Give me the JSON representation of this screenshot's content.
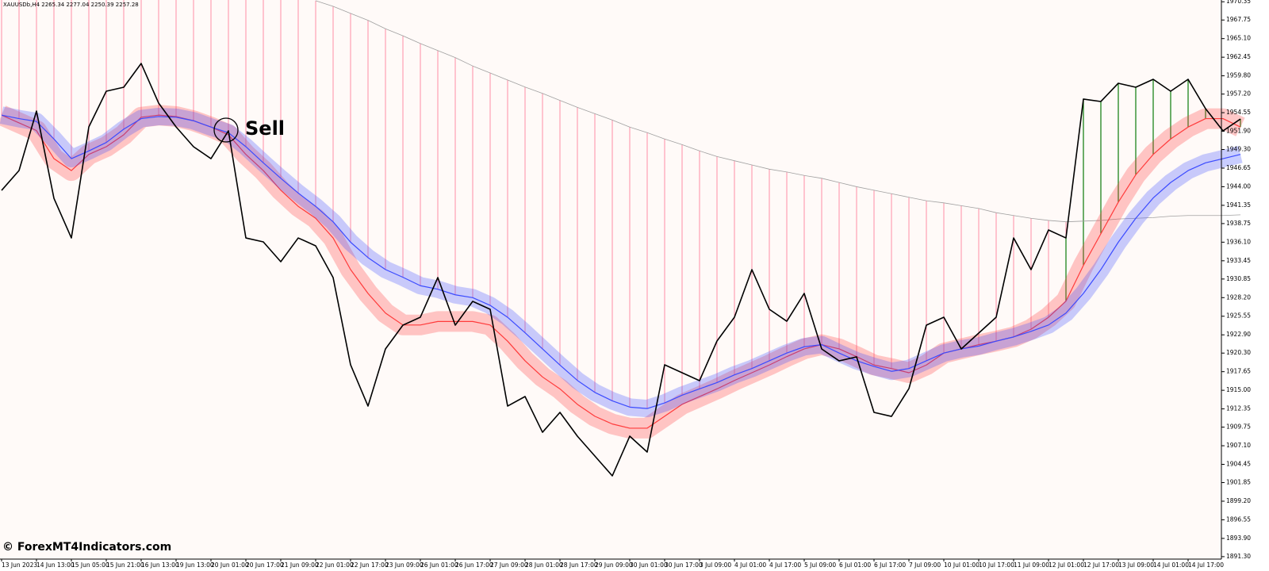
{
  "chart_data": {
    "type": "line",
    "symbol_info": "XAUUSDb,H4  2265.34 2277.04 2250.39 2257.28",
    "annotation": "Sell",
    "watermark": "© ForexMT4Indicators.com",
    "categories": [
      "13 Jun 2023",
      null,
      "14 Jun 13:00",
      null,
      "15 Jun 05:00",
      null,
      "15 Jun 21:00",
      null,
      "16 Jun 13:00",
      null,
      "19 Jun 13:00",
      null,
      "20 Jun 01:00",
      null,
      "20 Jun 17:00",
      null,
      "21 Jun 09:00",
      null,
      "22 Jun 01:00",
      null,
      "22 Jun 17:00",
      null,
      "23 Jun 09:00",
      null,
      "26 Jun 01:00",
      null,
      "26 Jun 17:00",
      null,
      "27 Jun 09:00",
      null,
      "28 Jun 01:00",
      null,
      "28 Jun 17:00",
      null,
      "29 Jun 09:00",
      null,
      "30 Jun 01:00",
      null,
      "30 Jun 17:00",
      null,
      "3 Jul 09:00",
      null,
      "4 Jul 01:00",
      null,
      "4 Jul 17:00",
      null,
      "5 Jul 09:00",
      null,
      "6 Jul 01:00",
      null,
      "6 Jul 17:00",
      null,
      "7 Jul 09:00",
      null,
      "10 Jul 01:00",
      null,
      "10 Jul 17:00",
      null,
      "11 Jul 09:00",
      null,
      "12 Jul 01:00",
      null,
      "12 Jul 17:00",
      null,
      "13 Jul 09:00",
      null,
      "14 Jul 01:00",
      null,
      "14 Jul 17:00",
      null,
      null,
      null
    ],
    "series": [
      {
        "color": "#000000",
        "values": [
          1943.48,
          1946.31,
          1954.78,
          1942.35,
          1936.7,
          1952.52,
          1957.61,
          1958.17,
          1961.56,
          1955.91,
          1952.52,
          1949.7,
          1948.0,
          1951.96,
          1936.7,
          1936.14,
          1933.32,
          1936.7,
          1935.58,
          1931.06,
          1918.63,
          1912.75,
          1920.89,
          1924.28,
          1925.41,
          1931.06,
          1924.28,
          1927.67,
          1926.54,
          1912.75,
          1914.11,
          1909.02,
          1911.85,
          1908.46,
          1905.64,
          1902.81,
          1908.46,
          1906.2,
          1918.63,
          1917.5,
          1916.37,
          1922.02,
          1925.41,
          1932.19,
          1926.54,
          1924.84,
          1928.8,
          1920.89,
          1919.19,
          1919.76,
          1911.85,
          1911.28,
          1915.24,
          1924.28,
          1925.41,
          1920.89,
          1923.15,
          1925.41,
          1936.7,
          1932.19,
          1937.84,
          1936.7,
          1956.48,
          1956.14,
          1958.74,
          1958.17,
          1959.3,
          1957.61,
          1959.3,
          1955.12,
          1951.96,
          1953.65
        ]
      },
      {
        "color": "#ff3b3b",
        "values": [
          1954.2,
          1953.1,
          1952.0,
          1948.0,
          1946.3,
          1948.6,
          1949.7,
          1951.4,
          1953.9,
          1954.2,
          1954.0,
          1953.4,
          1952.5,
          1951.4,
          1948.6,
          1946.3,
          1943.5,
          1941.2,
          1939.5,
          1936.7,
          1932.2,
          1928.8,
          1926.0,
          1924.3,
          1924.3,
          1924.8,
          1924.8,
          1924.8,
          1924.3,
          1922.0,
          1919.2,
          1916.9,
          1915.2,
          1913.0,
          1911.3,
          1910.2,
          1909.6,
          1909.6,
          1911.3,
          1913.0,
          1914.1,
          1915.2,
          1916.4,
          1917.5,
          1918.6,
          1919.8,
          1920.9,
          1921.5,
          1920.9,
          1919.8,
          1918.6,
          1918.1,
          1917.5,
          1918.6,
          1920.3,
          1920.9,
          1921.5,
          1922.0,
          1922.6,
          1923.7,
          1925.4,
          1927.7,
          1932.8,
          1937.3,
          1941.8,
          1945.7,
          1948.6,
          1950.8,
          1952.5,
          1953.7,
          1953.7,
          1952.5
        ]
      },
      {
        "color": "#3b4bff",
        "values": [
          1954.2,
          1953.7,
          1953.3,
          1950.8,
          1948.0,
          1949.1,
          1950.3,
          1952.2,
          1953.7,
          1954.0,
          1953.9,
          1953.4,
          1952.5,
          1951.7,
          1949.7,
          1947.4,
          1945.2,
          1943.1,
          1941.2,
          1939.0,
          1936.1,
          1933.9,
          1932.2,
          1931.1,
          1929.9,
          1929.4,
          1928.6,
          1928.2,
          1927.1,
          1925.4,
          1923.2,
          1920.9,
          1918.6,
          1916.4,
          1914.7,
          1913.5,
          1912.6,
          1912.4,
          1913.2,
          1914.3,
          1915.2,
          1916.1,
          1917.2,
          1918.1,
          1919.2,
          1920.3,
          1921.2,
          1921.5,
          1920.3,
          1919.2,
          1918.4,
          1917.7,
          1918.1,
          1919.2,
          1920.3,
          1920.9,
          1921.3,
          1922.0,
          1922.6,
          1923.4,
          1924.3,
          1926.0,
          1928.8,
          1932.2,
          1936.1,
          1939.5,
          1942.4,
          1944.6,
          1946.3,
          1947.4,
          1948.0,
          1948.6
        ]
      },
      {
        "color": "#a0a0a0",
        "values": [
          null,
          null,
          null,
          null,
          null,
          null,
          null,
          null,
          null,
          null,
          null,
          null,
          null,
          null,
          null,
          null,
          null,
          null,
          1970.5,
          1969.7,
          1968.7,
          1967.7,
          1966.5,
          1965.5,
          1964.4,
          1963.4,
          1962.4,
          1961.2,
          1960.2,
          1959.2,
          1958.2,
          1957.3,
          1956.3,
          1955.3,
          1954.4,
          1953.5,
          1952.5,
          1951.7,
          1950.8,
          1950.0,
          1949.1,
          1948.3,
          1947.7,
          1947.1,
          1946.5,
          1946.1,
          1945.6,
          1945.2,
          1944.6,
          1944.0,
          1943.5,
          1943.0,
          1942.5,
          1942.0,
          1941.7,
          1941.3,
          1940.9,
          1940.3,
          1939.9,
          1939.5,
          1939.2,
          1939.0,
          1939.1,
          1939.2,
          1939.4,
          1939.5,
          1939.6,
          1939.8,
          1939.9,
          1939.9,
          1939.9,
          1940.0
        ]
      }
    ],
    "ylim": [
      1890.95,
      1970.6
    ],
    "yticks": [
      1970.35,
      1967.75,
      {
        "value": 1965.1,
        "label": "1965.10"
      },
      1962.45,
      {
        "value": 1959.8,
        "label": "1959.80"
      },
      {
        "value": 1957.2,
        "label": "1957.20"
      },
      1954.55,
      {
        "value": 1951.9,
        "label": "1951.90"
      },
      {
        "value": 1949.3,
        "label": "1949.30"
      },
      1946.65,
      {
        "value": 1944,
        "label": "1944.00"
      },
      1941.35,
      1938.75,
      {
        "value": 1936.1,
        "label": "1936.10"
      },
      1933.45,
      1930.85,
      {
        "value": 1928.2,
        "label": "1928.20"
      },
      1925.55,
      {
        "value": 1922.9,
        "label": "1922.90"
      },
      {
        "value": 1920.3,
        "label": "1920.30"
      },
      1917.65,
      {
        "value": 1915,
        "label": "1915.00"
      },
      1912.35,
      1909.75,
      {
        "value": 1907.1,
        "label": "1907.10"
      },
      1904.45,
      1901.85,
      {
        "value": 1899.2,
        "label": "1899.20"
      },
      1896.55,
      {
        "value": 1893.9,
        "label": "1893.90"
      },
      {
        "value": 1891.3,
        "label": "1891.30"
      }
    ],
    "grid": false,
    "background": "#fffaf8",
    "histogram_color": "#ff8fa6",
    "histogram_up_color": "#0a7a0a"
  }
}
